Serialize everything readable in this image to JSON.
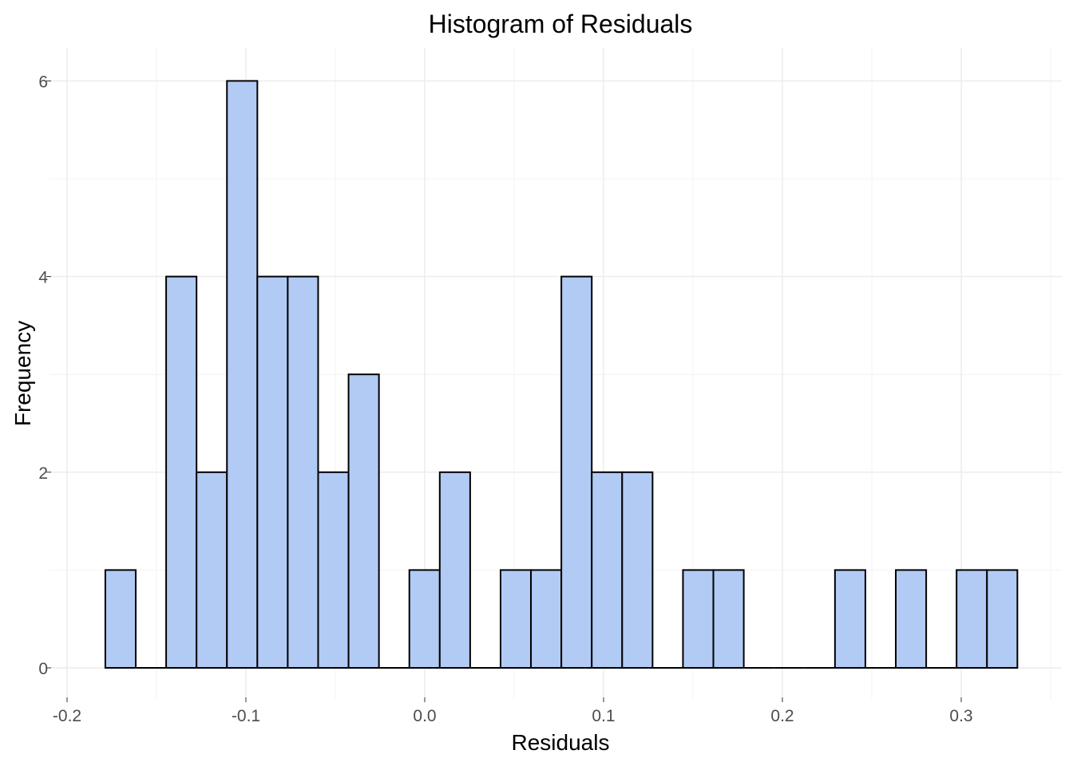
{
  "chart_data": {
    "type": "bar",
    "title": "Histogram of Residuals",
    "xlabel": "Residuals",
    "ylabel": "Frequency",
    "xlim": [
      -0.2,
      0.35
    ],
    "ylim": [
      0,
      6.3
    ],
    "xticks": [
      -0.2,
      -0.1,
      0.0,
      0.1,
      0.2,
      0.3
    ],
    "xtick_labels": [
      "-0.2",
      "-0.1",
      "0.0",
      "0.1",
      "0.2",
      "0.3"
    ],
    "yticks": [
      0,
      2,
      4,
      6
    ],
    "ytick_labels": [
      "0",
      "2",
      "4",
      "6"
    ],
    "bin_start": -0.1786,
    "bin_width": 0.017,
    "counts": [
      1,
      0,
      4,
      2,
      6,
      4,
      4,
      2,
      3,
      0,
      1,
      2,
      0,
      1,
      1,
      4,
      2,
      2,
      0,
      1,
      1,
      0,
      0,
      0,
      1,
      0,
      1,
      0,
      1,
      1
    ],
    "bar_fill": "#b2cbf5",
    "bar_stroke": "#000000",
    "grid": true
  }
}
